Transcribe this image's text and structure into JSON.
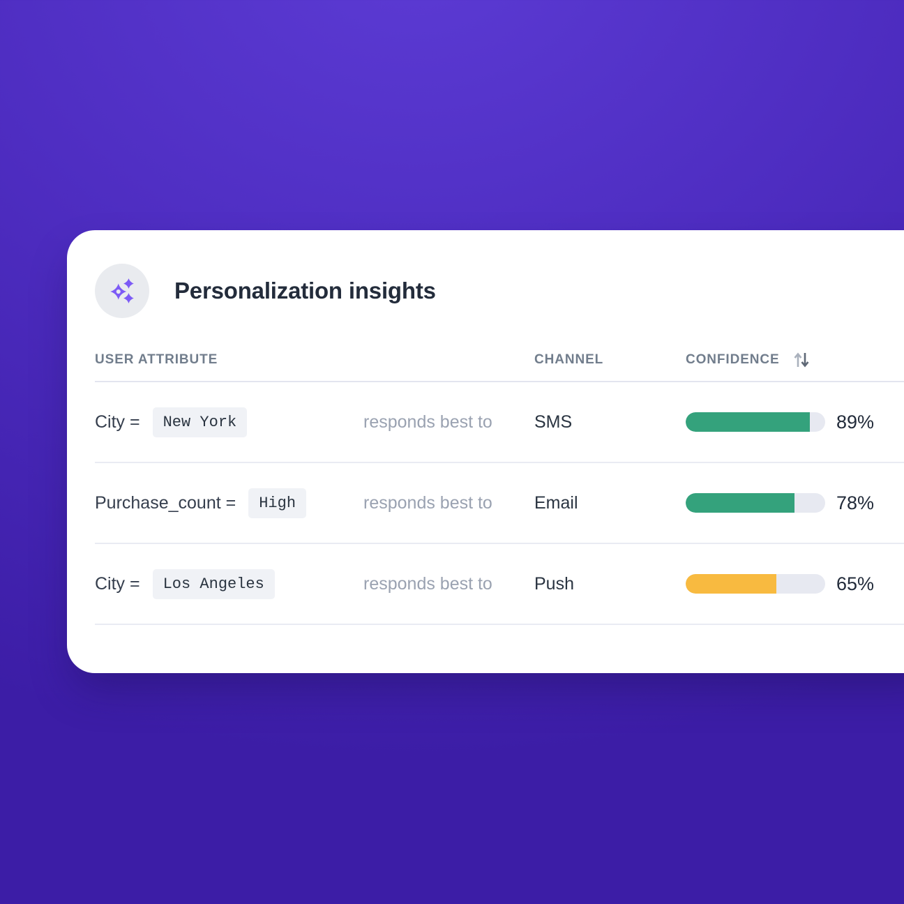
{
  "card": {
    "title": "Personalization insights",
    "accent_color": "#7d5bf6"
  },
  "table": {
    "columns": {
      "attribute": "User attribute",
      "channel": "Channel",
      "confidence": "Confidence"
    },
    "connector_text": "responds best to",
    "rows": [
      {
        "attribute_label": "City =",
        "attribute_value": "New York",
        "channel": "SMS",
        "confidence_pct": 89,
        "confidence_label": "89%",
        "bar_color": "#34a27c"
      },
      {
        "attribute_label": "Purchase_count =",
        "attribute_value": "High",
        "channel": "Email",
        "confidence_pct": 78,
        "confidence_label": "78%",
        "bar_color": "#34a27c"
      },
      {
        "attribute_label": "City =",
        "attribute_value": "Los Angeles",
        "channel": "Push",
        "confidence_pct": 65,
        "confidence_label": "65%",
        "bar_color": "#f8ba40"
      }
    ]
  }
}
